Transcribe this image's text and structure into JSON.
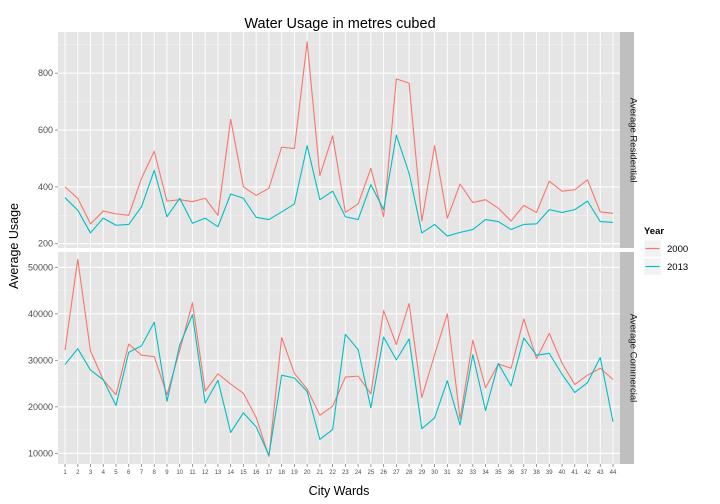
{
  "chart_data": {
    "type": "line",
    "title": "Water Usage in metres cubed",
    "xlabel": "City Wards",
    "ylabel": "Average Usage",
    "x": [
      1,
      2,
      3,
      4,
      5,
      6,
      7,
      8,
      9,
      10,
      11,
      12,
      13,
      14,
      15,
      16,
      17,
      18,
      19,
      20,
      21,
      22,
      23,
      24,
      25,
      26,
      27,
      28,
      29,
      30,
      31,
      32,
      33,
      34,
      35,
      36,
      37,
      38,
      39,
      40,
      41,
      42,
      43,
      44
    ],
    "legend": {
      "title": "Year",
      "position": "right"
    },
    "colors": {
      "2000": "#F8766D",
      "2013": "#00BFC4"
    },
    "panels": [
      {
        "strip": "Average Residential",
        "ylim": [
          185,
          945
        ],
        "yticks": [
          200,
          400,
          600,
          800
        ],
        "series": [
          {
            "name": "2000",
            "values": [
              400,
              360,
              270,
              315,
              305,
              300,
              430,
              525,
              350,
              355,
              348,
              360,
              300,
              638,
              400,
              370,
              395,
              540,
              535,
              910,
              440,
              580,
              310,
              340,
              465,
              295,
              780,
              765,
              280,
              545,
              290,
              410,
              345,
              355,
              325,
              280,
              335,
              310,
              420,
              385,
              390,
              425,
              312,
              307
            ]
          },
          {
            "name": "2013",
            "values": [
              362,
              318,
              238,
              290,
              265,
              268,
              330,
              458,
              295,
              360,
              272,
              290,
              260,
              375,
              360,
              293,
              285,
              312,
              340,
              545,
              355,
              385,
              295,
              285,
              408,
              320,
              582,
              448,
              238,
              268,
              227,
              240,
              250,
              285,
              278,
              250,
              268,
              270,
              320,
              310,
              320,
              350,
              278,
              275
            ]
          }
        ]
      },
      {
        "strip": "Average Commercial",
        "ylim": [
          7700,
          53300
        ],
        "yticks": [
          10000,
          20000,
          30000,
          40000,
          50000
        ],
        "series": [
          {
            "name": "2000",
            "values": [
              32200,
              51700,
              32000,
              25800,
              22600,
              33500,
              31100,
              30800,
              22600,
              32100,
              42400,
              23400,
              27100,
              24900,
              22900,
              17700,
              9300,
              34900,
              27200,
              23800,
              18200,
              20100,
              26400,
              26600,
              22800,
              40700,
              33400,
              42200,
              22000,
              31200,
              40000,
              17400,
              34300,
              24100,
              29200,
              28300,
              38900,
              30400,
              35800,
              29400,
              24800,
              26800,
              28300,
              25900
            ]
          },
          {
            "name": "2013",
            "values": [
              29100,
              32500,
              27900,
              25800,
              20300,
              31700,
              33100,
              38200,
              21200,
              33300,
              39800,
              20800,
              25700,
              14500,
              18700,
              15700,
              9600,
              26800,
              26200,
              23300,
              13000,
              15100,
              35600,
              32300,
              19800,
              35000,
              30100,
              34600,
              15300,
              17600,
              25600,
              16100,
              31200,
              19200,
              29300,
              24500,
              34800,
              31100,
              31500,
              27000,
              23100,
              25200,
              30600,
              16800
            ]
          }
        ]
      }
    ]
  }
}
